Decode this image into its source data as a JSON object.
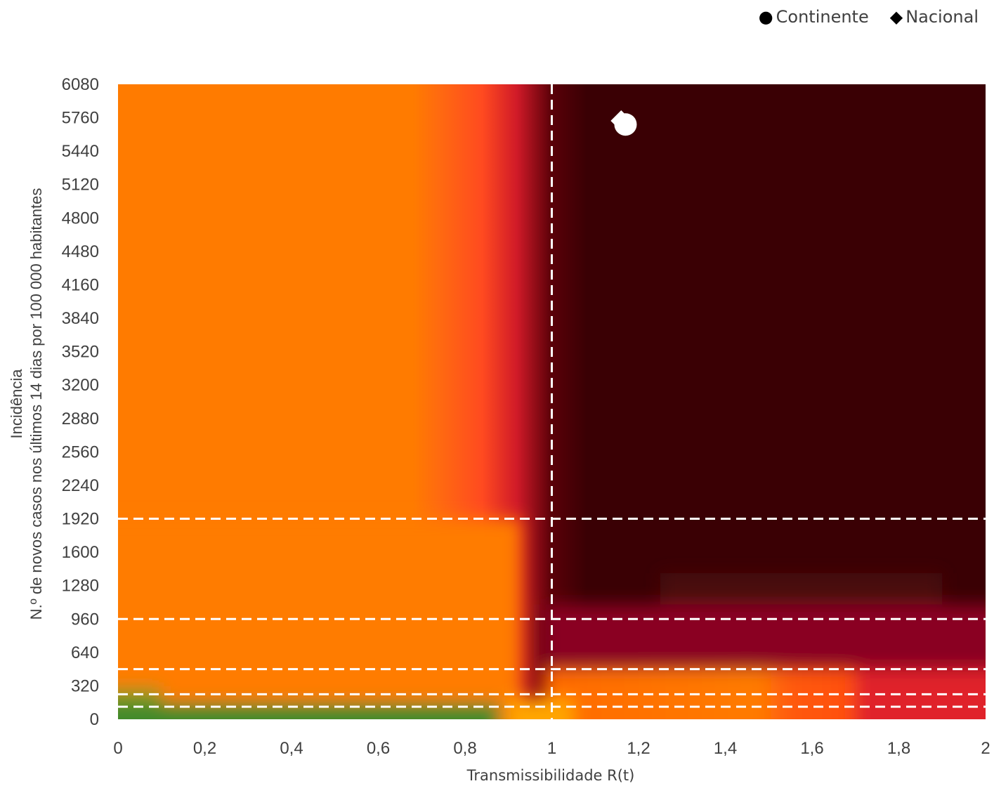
{
  "legend": [
    {
      "symbol": "●",
      "icon": "circle-icon",
      "label": "Continente"
    },
    {
      "symbol": "◆",
      "icon": "diamond-icon",
      "label": "Nacional"
    }
  ],
  "chart_data": {
    "type": "scatter",
    "xlabel": "Transmissibilidade R(t)",
    "ylabel_line1": "Incidência",
    "ylabel_line2": "N.º de novos casos nos últimos 14 dias por 100 000 habitantes",
    "xlim": [
      0,
      2
    ],
    "ylim": [
      0,
      6080
    ],
    "x_ticks": [
      "0",
      "0,2",
      "0,4",
      "0,6",
      "0,8",
      "1",
      "1,2",
      "1,4",
      "1,6",
      "1,8",
      "2"
    ],
    "y_ticks": [
      "0",
      "320",
      "640",
      "960",
      "1280",
      "1600",
      "1920",
      "2240",
      "2560",
      "2880",
      "3200",
      "3520",
      "3840",
      "4160",
      "4480",
      "4800",
      "5120",
      "5440",
      "5760",
      "6080"
    ],
    "reference_lines": {
      "x": [
        1
      ],
      "y": [
        120,
        240,
        480,
        960,
        1920
      ]
    },
    "series": [
      {
        "name": "Continente",
        "marker": "circle",
        "x": [
          1.17
        ],
        "y": [
          5695
        ]
      },
      {
        "name": "Nacional",
        "marker": "diamond",
        "x": [
          1.16
        ],
        "y": [
          5730
        ]
      }
    ],
    "background": "risk heatmap (green → orange → red → dark red)",
    "colors": {
      "green": "#3f8a2a",
      "orange": "#ff7b00",
      "yellow": "#ffa500",
      "red": "#e0202a",
      "crimson": "#9a0028",
      "dark": "#3a0004"
    },
    "grid": false
  }
}
